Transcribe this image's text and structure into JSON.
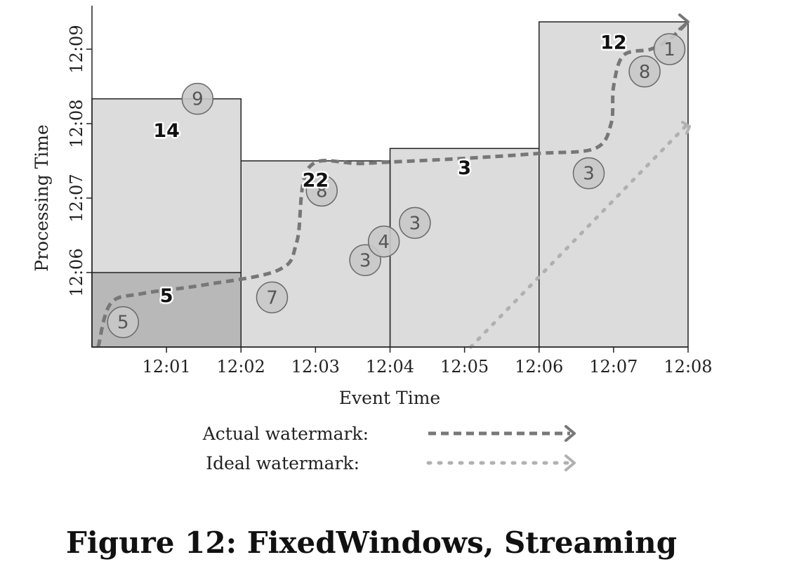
{
  "chart_data": {
    "type": "scatter",
    "title": "",
    "xlabel": "Event Time",
    "ylabel": "Processing Time",
    "x_ticks": [
      "12:01",
      "12:02",
      "12:03",
      "12:04",
      "12:05",
      "12:06",
      "12:07",
      "12:08"
    ],
    "y_ticks": [
      "12:06",
      "12:07",
      "12:08",
      "12:09"
    ],
    "xlim": [
      "12:00:00",
      "12:08:00"
    ],
    "ylim": [
      "12:05:00",
      "12:09:35"
    ],
    "panes": [
      {
        "label": "5",
        "x_start": "12:00:00",
        "x_end": "12:02:00",
        "processing_time": "12:06:00",
        "label_at": [
          "12:01:00",
          "12:05:42"
        ]
      },
      {
        "label": "14",
        "x_start": "12:00:00",
        "x_end": "12:02:00",
        "processing_time": "12:08:20",
        "label_at": [
          "12:01:00",
          "12:07:55"
        ]
      },
      {
        "label": "22",
        "x_start": "12:02:00",
        "x_end": "12:04:00",
        "processing_time": "12:07:30",
        "label_at": [
          "12:03:00",
          "12:07:15"
        ]
      },
      {
        "label": "3",
        "x_start": "12:04:00",
        "x_end": "12:06:00",
        "processing_time": "12:07:40",
        "label_at": [
          "12:05:00",
          "12:07:25"
        ]
      },
      {
        "label": "12",
        "x_start": "12:06:00",
        "x_end": "12:08:00",
        "processing_time": "12:09:22",
        "label_at": [
          "12:07:00",
          "12:09:06"
        ]
      }
    ],
    "points": [
      {
        "value": "5",
        "event_time": "12:00:25",
        "processing_time": "12:05:20"
      },
      {
        "value": "9",
        "event_time": "12:01:25",
        "processing_time": "12:08:20"
      },
      {
        "value": "7",
        "event_time": "12:02:25",
        "processing_time": "12:05:40"
      },
      {
        "value": "8",
        "event_time": "12:03:05",
        "processing_time": "12:07:06"
      },
      {
        "value": "3",
        "event_time": "12:03:40",
        "processing_time": "12:06:10"
      },
      {
        "value": "4",
        "event_time": "12:03:55",
        "processing_time": "12:06:25"
      },
      {
        "value": "3",
        "event_time": "12:04:20",
        "processing_time": "12:06:40"
      },
      {
        "value": "3",
        "event_time": "12:06:40",
        "processing_time": "12:07:20"
      },
      {
        "value": "8",
        "event_time": "12:07:25",
        "processing_time": "12:08:42"
      },
      {
        "value": "1",
        "event_time": "12:07:45",
        "processing_time": "12:09:00"
      }
    ],
    "watermarks": [
      {
        "name": "Actual watermark:",
        "style": "dashed",
        "color": "#777777",
        "x": [
          "12:00:05",
          "12:00:15",
          "12:00:40",
          "12:01:30",
          "12:02:30",
          "12:02:45",
          "12:02:55",
          "12:03:40",
          "12:05:00",
          "12:06:00",
          "12:06:45",
          "12:06:58",
          "12:07:00",
          "12:07:08",
          "12:07:30",
          "12:07:45",
          "12:08:00"
        ],
        "y": [
          "12:05:00",
          "12:05:35",
          "12:05:43",
          "12:05:50",
          "12:06:02",
          "12:06:25",
          "12:07:25",
          "12:07:28",
          "12:07:32",
          "12:07:36",
          "12:07:40",
          "12:08:00",
          "12:08:30",
          "12:08:55",
          "12:09:00",
          "12:09:08",
          "12:09:22"
        ]
      },
      {
        "name": "Ideal watermark:",
        "style": "dotted",
        "color": "#b0b0b0",
        "x": [
          "12:05:05",
          "12:08:00"
        ],
        "y": [
          "12:05:00",
          "12:08:00"
        ]
      }
    ],
    "caption": "Figure 12: FixedWindows, Streaming",
    "colors": {
      "pane_fill": "#dcdcdc",
      "first_pane_fill": "#b8b8b8",
      "point_fill": "#c8c8c8",
      "actual_watermark": "#777777",
      "ideal_watermark": "#b0b0b0"
    },
    "legend_position": "bottom"
  }
}
